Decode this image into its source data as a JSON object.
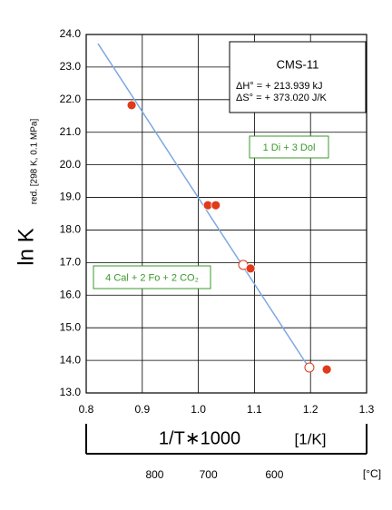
{
  "chart_data": {
    "type": "scatter",
    "y_label": "ln K",
    "y_label_sub": "red. [298 K, 0.1 MPa]",
    "x_label": "1/T∗1000",
    "x_unit": "[1/K]",
    "x2_unit": "[°C]",
    "x2ticks": [
      800,
      700,
      600
    ],
    "xlim": [
      0.8,
      1.3
    ],
    "ylim": [
      13,
      24
    ],
    "xticks": [
      0.8,
      0.9,
      {
        "value": 1,
        "label": "1.0"
      },
      1.1,
      1.2,
      1.3
    ],
    "yticks": [
      {
        "value": 13,
        "label": "13.0"
      },
      {
        "value": 14,
        "label": "14.0"
      },
      {
        "value": 15,
        "label": "15.0"
      },
      {
        "value": 16,
        "label": "16.0"
      },
      {
        "value": 17,
        "label": "17.0"
      },
      {
        "value": 18,
        "label": "18.0"
      },
      {
        "value": 19,
        "label": "19.0"
      },
      {
        "value": 20,
        "label": "20.0"
      },
      {
        "value": 21,
        "label": "21.0"
      },
      {
        "value": 22,
        "label": "22.0"
      },
      {
        "value": 23,
        "label": "23.0"
      },
      {
        "value": 24,
        "label": "24.0"
      }
    ],
    "grid": true,
    "info_box": {
      "title": "CMS-11",
      "lines": [
        "ΔH° = +  213.939 kJ",
        "ΔS° = +  373.020 J/K"
      ]
    },
    "annotations": [
      "1 Di + 3 Dol",
      "4 Cal + 2 Fo + 2 CO₂"
    ],
    "annotation_color": "#3a9a2a",
    "series": [
      {
        "marker": "line",
        "color": "#7ea8e2",
        "x": [
          0.821,
          1.2
        ],
        "values": [
          23.72,
          13.7
        ]
      },
      {
        "marker": "open",
        "color": "#e03a1a",
        "x": [
          1.08,
          1.198
        ],
        "values": [
          16.93,
          13.78
        ]
      },
      {
        "marker": "filled",
        "color": "#e03a1a",
        "x": [
          0.881,
          1.017,
          1.031,
          1.093,
          1.229
        ],
        "values": [
          21.83,
          18.76,
          18.76,
          16.82,
          13.72
        ]
      }
    ]
  }
}
